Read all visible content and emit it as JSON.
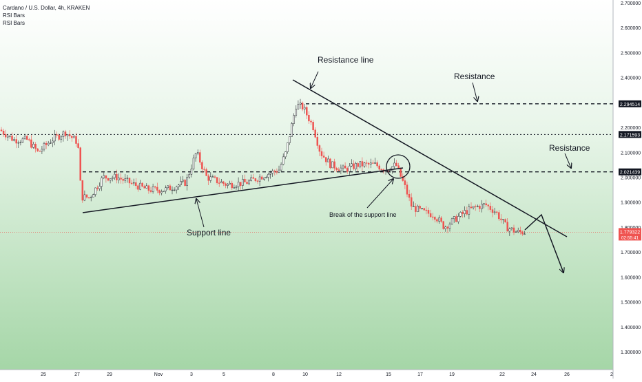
{
  "header": {
    "symbol_line": "Cardano / U.S. Dollar, 4h, KRAKEN",
    "indicators": [
      "RSI Bars",
      "RSI Bars"
    ]
  },
  "colors": {
    "up": "#ffffff",
    "down": "#ef5350",
    "bg_top": "#ffffff",
    "bg_bottom": "#a5d6a7",
    "price_badge": "#ef5350",
    "level_badge": "#131722",
    "grid": "#e0e3eb"
  },
  "chart_data": {
    "type": "candlestick",
    "ylim": [
      1.24,
      2.7
    ],
    "y_ticks": [
      "2.700000",
      "2.600000",
      "2.500000",
      "2.400000",
      "2.300000",
      "2.200000",
      "2.100000",
      "2.000000",
      "1.900000",
      "1.800000",
      "1.700000",
      "1.600000",
      "1.500000",
      "1.400000",
      "1.300000"
    ],
    "x_ticks": [
      "25",
      "27",
      "29",
      "Nov",
      "3",
      "5",
      "8",
      "10",
      "12",
      "15",
      "17",
      "19",
      "22",
      "24",
      "26",
      "2"
    ],
    "current_price": "1.779322",
    "countdown": "02:55:41",
    "levels": [
      {
        "value": 2.294514,
        "label": "2.294514",
        "style": "dashed"
      },
      {
        "value": 2.171593,
        "label": "2.171593",
        "style": "dotted"
      },
      {
        "value": 2.021439,
        "label": "2.021439",
        "style": "dashed"
      }
    ],
    "candles_summary": {
      "anchors": [
        [
          0,
          2.19
        ],
        [
          20,
          2.15
        ],
        [
          40,
          2.15
        ],
        [
          55,
          2.1
        ],
        [
          75,
          2.15
        ],
        [
          95,
          2.18
        ],
        [
          113,
          2.14
        ],
        [
          118,
          1.92
        ],
        [
          130,
          1.92
        ],
        [
          150,
          2.0
        ],
        [
          170,
          2.0
        ],
        [
          195,
          1.97
        ],
        [
          215,
          1.95
        ],
        [
          240,
          1.95
        ],
        [
          270,
          1.98
        ],
        [
          285,
          2.1
        ],
        [
          300,
          2.0
        ],
        [
          330,
          1.97
        ],
        [
          360,
          1.98
        ],
        [
          385,
          2.01
        ],
        [
          405,
          2.03
        ],
        [
          415,
          2.1
        ],
        [
          430,
          2.29
        ],
        [
          440,
          2.28
        ],
        [
          455,
          2.2
        ],
        [
          465,
          2.1
        ],
        [
          480,
          2.05
        ],
        [
          500,
          2.03
        ],
        [
          520,
          2.05
        ],
        [
          545,
          2.05
        ],
        [
          560,
          2.03
        ],
        [
          575,
          2.05
        ],
        [
          588,
          1.96
        ],
        [
          598,
          1.88
        ],
        [
          615,
          1.86
        ],
        [
          630,
          1.85
        ],
        [
          645,
          1.8
        ],
        [
          660,
          1.83
        ],
        [
          675,
          1.86
        ],
        [
          690,
          1.88
        ],
        [
          705,
          1.89
        ],
        [
          720,
          1.86
        ],
        [
          735,
          1.8
        ],
        [
          750,
          1.78
        ],
        [
          762,
          1.78
        ]
      ]
    },
    "annotations": [
      {
        "text": "Resistance line"
      },
      {
        "text": "Resistance"
      },
      {
        "text": "Resistance"
      },
      {
        "text": "Support line"
      },
      {
        "text": "Break of the support line"
      }
    ]
  }
}
